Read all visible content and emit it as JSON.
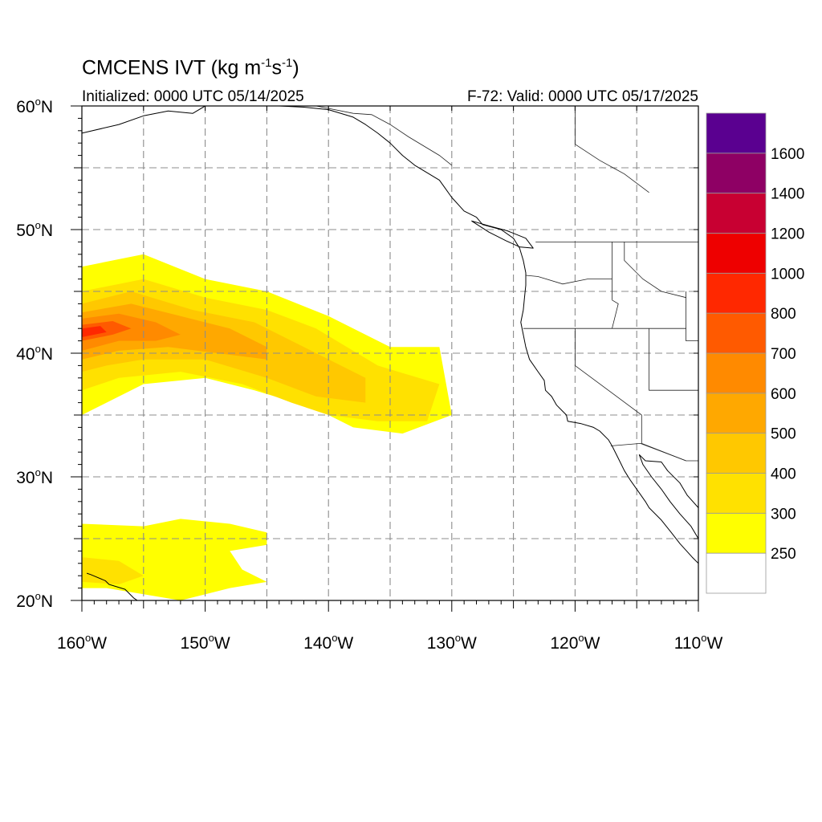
{
  "title": {
    "prefix": "CMCENS IVT (kg m",
    "exp1": "-1",
    "mid": "s",
    "exp2": "-1",
    "suffix": ")"
  },
  "subtitle_left": "Initialized: 0000 UTC 05/14/2025",
  "subtitle_right": "F-72: Valid: 0000 UTC 05/17/2025",
  "map": {
    "lon_range": [
      -160,
      -110
    ],
    "lat_range": [
      20,
      60
    ],
    "lon_ticks": [
      {
        "value": -160,
        "deg": "160",
        "hemi": "W"
      },
      {
        "value": -150,
        "deg": "150",
        "hemi": "W"
      },
      {
        "value": -140,
        "deg": "140",
        "hemi": "W"
      },
      {
        "value": -130,
        "deg": "130",
        "hemi": "W"
      },
      {
        "value": -120,
        "deg": "120",
        "hemi": "W"
      },
      {
        "value": -110,
        "deg": "110",
        "hemi": "W"
      }
    ],
    "lat_ticks": [
      {
        "value": 60,
        "deg": "60",
        "hemi": "N"
      },
      {
        "value": 50,
        "deg": "50",
        "hemi": "N"
      },
      {
        "value": 40,
        "deg": "40",
        "hemi": "N"
      },
      {
        "value": 30,
        "deg": "30",
        "hemi": "N"
      },
      {
        "value": 20,
        "deg": "20",
        "hemi": "N"
      }
    ],
    "gridlines": "dashed every 5 degrees",
    "degree_symbol": "o"
  },
  "colorbar": {
    "levels": [
      "250",
      "300",
      "400",
      "500",
      "600",
      "700",
      "800",
      "1000",
      "1200",
      "1400",
      "1600"
    ],
    "colors": [
      "#ffffff",
      "#ffff00",
      "#ffe100",
      "#ffc800",
      "#ffa800",
      "#ff8a00",
      "#ff5a00",
      "#ff2800",
      "#ee0000",
      "#c80032",
      "#8e0064",
      "#5a0090"
    ]
  },
  "ivt_fields": [
    {
      "name": "main-river",
      "level": 0,
      "ring": [
        [
          -160,
          47
        ],
        [
          -155,
          48
        ],
        [
          -150,
          46
        ],
        [
          -145,
          45
        ],
        [
          -140,
          43
        ],
        [
          -135,
          40.5
        ],
        [
          -131,
          40.5
        ],
        [
          -130,
          35
        ],
        [
          -134,
          33.5
        ],
        [
          -138,
          34
        ],
        [
          -141,
          35.5
        ],
        [
          -146,
          37
        ],
        [
          -150,
          38
        ],
        [
          -155,
          37.5
        ],
        [
          -158,
          36
        ],
        [
          -160,
          35
        ]
      ]
    },
    {
      "name": "main-river",
      "level": 1,
      "ring": [
        [
          -160,
          45
        ],
        [
          -155,
          46
        ],
        [
          -150,
          44.5
        ],
        [
          -145,
          43.5
        ],
        [
          -141,
          42
        ],
        [
          -136,
          39
        ],
        [
          -131,
          37.5
        ],
        [
          -132,
          34.5
        ],
        [
          -136,
          34.5
        ],
        [
          -140,
          35
        ],
        [
          -143,
          36
        ],
        [
          -147,
          37.5
        ],
        [
          -152,
          38.5
        ],
        [
          -157,
          38
        ],
        [
          -160,
          37
        ]
      ]
    },
    {
      "name": "main-river",
      "level": 2,
      "ring": [
        [
          -160,
          44
        ],
        [
          -156,
          45
        ],
        [
          -151,
          43.5
        ],
        [
          -146,
          42.5
        ],
        [
          -142,
          40.5
        ],
        [
          -137,
          38
        ],
        [
          -137,
          36
        ],
        [
          -141,
          36.5
        ],
        [
          -145,
          38
        ],
        [
          -150,
          39.5
        ],
        [
          -155,
          39.5
        ],
        [
          -158,
          39
        ],
        [
          -160,
          38.5
        ]
      ]
    },
    {
      "name": "main-river",
      "level": 3,
      "ring": [
        [
          -160,
          43.3
        ],
        [
          -156,
          44
        ],
        [
          -152,
          43
        ],
        [
          -148,
          42
        ],
        [
          -145,
          40.5
        ],
        [
          -145,
          39.5
        ],
        [
          -149,
          40
        ],
        [
          -153,
          40.5
        ],
        [
          -157,
          40.2
        ],
        [
          -160,
          39.5
        ]
      ]
    },
    {
      "name": "main-river",
      "level": 4,
      "ring": [
        [
          -160,
          42.8
        ],
        [
          -157,
          43.2
        ],
        [
          -154,
          42.5
        ],
        [
          -152,
          41.5
        ],
        [
          -154,
          41
        ],
        [
          -157,
          41
        ],
        [
          -160,
          40.2
        ]
      ]
    },
    {
      "name": "main-river",
      "level": 5,
      "ring": [
        [
          -160,
          42.3
        ],
        [
          -157.5,
          42.6
        ],
        [
          -156,
          42
        ],
        [
          -157.5,
          41.5
        ],
        [
          -160,
          41
        ]
      ]
    },
    {
      "name": "main-river",
      "level": 6,
      "ring": [
        [
          -160,
          42
        ],
        [
          -158.5,
          42.2
        ],
        [
          -158,
          41.7
        ],
        [
          -160,
          41.3
        ]
      ]
    },
    {
      "name": "subtropical-moisture",
      "level": 0,
      "ring": [
        [
          -160,
          26.2
        ],
        [
          -155,
          26
        ],
        [
          -152,
          26.6
        ],
        [
          -148,
          26.2
        ],
        [
          -145,
          25.5
        ],
        [
          -145,
          24.5
        ],
        [
          -148,
          24
        ],
        [
          -147,
          22.5
        ],
        [
          -145,
          21.5
        ],
        [
          -148,
          21
        ],
        [
          -152,
          20
        ],
        [
          -155,
          20.5
        ],
        [
          -158,
          21
        ],
        [
          -160,
          21
        ]
      ]
    },
    {
      "name": "subtropical-moisture",
      "level": 1,
      "ring": [
        [
          -160,
          23.5
        ],
        [
          -157,
          23.2
        ],
        [
          -155,
          22
        ],
        [
          -157,
          21.3
        ],
        [
          -160,
          21.5
        ]
      ]
    }
  ],
  "coastlines": [
    {
      "name": "alaska-coast",
      "points": [
        [
          -160,
          57.8
        ],
        [
          -157,
          58.5
        ],
        [
          -155,
          59.2
        ],
        [
          -153,
          59.6
        ],
        [
          -151,
          59.4
        ],
        [
          -150,
          60
        ],
        [
          -148,
          60
        ],
        [
          -146,
          60.2
        ],
        [
          -144,
          60
        ],
        [
          -142,
          59.9
        ],
        [
          -140,
          59.7
        ],
        [
          -138,
          59.1
        ],
        [
          -137,
          58.5
        ],
        [
          -136,
          57.8
        ],
        [
          -135,
          57
        ],
        [
          -134,
          56
        ],
        [
          -133,
          55.2
        ],
        [
          -132,
          54.6
        ],
        [
          -131,
          54
        ],
        [
          -130.5,
          53.3
        ],
        [
          -130,
          52.6
        ],
        [
          -129,
          51.5
        ],
        [
          -128,
          51
        ],
        [
          -127.5,
          50.4
        ],
        [
          -126,
          50
        ],
        [
          -125,
          49.3
        ],
        [
          -124.5,
          48.5
        ],
        [
          -124.2,
          47.5
        ],
        [
          -124,
          46.5
        ],
        [
          -124,
          45.5
        ],
        [
          -124.1,
          44.5
        ],
        [
          -124.2,
          43.5
        ],
        [
          -124.4,
          42.5
        ],
        [
          -124.2,
          41.5
        ],
        [
          -124,
          40.5
        ],
        [
          -123.7,
          39.5
        ],
        [
          -123,
          38.5
        ],
        [
          -122.5,
          37.8
        ],
        [
          -122.4,
          37
        ],
        [
          -121.9,
          36.5
        ],
        [
          -121.5,
          35.8
        ],
        [
          -120.7,
          35
        ],
        [
          -120.6,
          34.5
        ],
        [
          -119.5,
          34.3
        ],
        [
          -118.5,
          34
        ],
        [
          -118,
          33.7
        ],
        [
          -117.3,
          33
        ],
        [
          -117,
          32.5
        ],
        [
          -116.5,
          31.5
        ],
        [
          -116,
          30.5
        ],
        [
          -115.5,
          29.7
        ],
        [
          -115,
          29
        ],
        [
          -114.3,
          28
        ],
        [
          -114,
          27.5
        ],
        [
          -113,
          26.5
        ],
        [
          -112.2,
          25.5
        ],
        [
          -111.5,
          24.6
        ],
        [
          -110.5,
          23.5
        ],
        [
          -110,
          23
        ]
      ]
    },
    {
      "name": "gulf-of-california-coast",
      "points": [
        [
          -114.8,
          31.8
        ],
        [
          -114.5,
          31
        ],
        [
          -113.8,
          30
        ],
        [
          -113,
          29
        ],
        [
          -112.3,
          28
        ],
        [
          -111.5,
          27
        ],
        [
          -110.6,
          26
        ],
        [
          -110,
          25
        ]
      ]
    },
    {
      "name": "mexico-mainland-coast",
      "points": [
        [
          -114.8,
          31.8
        ],
        [
          -114.3,
          31.3
        ],
        [
          -113,
          31.2
        ],
        [
          -112.5,
          30.5
        ],
        [
          -111.5,
          29.5
        ],
        [
          -110.9,
          28.5
        ],
        [
          -110,
          27.5
        ],
        [
          -110,
          27
        ]
      ]
    },
    {
      "name": "hawaii-islands",
      "points": [
        [
          -159.6,
          22.2
        ],
        [
          -159.3,
          22.1
        ],
        [
          -158.1,
          21.6
        ],
        [
          -157.8,
          21.3
        ],
        [
          -156.5,
          20.9
        ],
        [
          -155.8,
          20.2
        ],
        [
          -155.5,
          20
        ]
      ]
    },
    {
      "name": "vancouver-island",
      "points": [
        [
          -128.4,
          50.7
        ],
        [
          -127,
          50.3
        ],
        [
          -125.5,
          49.9
        ],
        [
          -124,
          49.3
        ],
        [
          -123.4,
          48.5
        ],
        [
          -124.5,
          48.6
        ],
        [
          -125.6,
          49.1
        ],
        [
          -127,
          49.8
        ],
        [
          -128.4,
          50.7
        ]
      ]
    }
  ],
  "boundaries": [
    {
      "name": "us-canada-border",
      "points": [
        [
          -123.2,
          49
        ],
        [
          -110,
          49
        ]
      ]
    },
    {
      "name": "alaska-canada-border",
      "points": [
        [
          -141,
          60
        ],
        [
          -138,
          59.4
        ],
        [
          -136.5,
          59.3
        ],
        [
          -135,
          58.5
        ],
        [
          -133.5,
          57.5
        ],
        [
          -131,
          56
        ],
        [
          -130,
          55.2
        ]
      ]
    },
    {
      "name": "canada-coast-continuation",
      "points": [
        [
          -120,
          60
        ],
        [
          -120,
          56.9
        ],
        [
          -118,
          55.6
        ],
        [
          -116,
          54.5
        ],
        [
          -114,
          53
        ]
      ]
    },
    {
      "name": "wa-or-border",
      "points": [
        [
          -124,
          46.3
        ],
        [
          -123,
          46.2
        ],
        [
          -121,
          45.6
        ],
        [
          -119,
          46
        ],
        [
          -117,
          46
        ]
      ]
    },
    {
      "name": "id-wa-border",
      "points": [
        [
          -117,
          49
        ],
        [
          -117,
          44.3
        ]
      ]
    },
    {
      "name": "id-east-border",
      "points": [
        [
          -116,
          49
        ],
        [
          -116,
          47.5
        ],
        [
          -114.5,
          46
        ],
        [
          -113,
          45
        ],
        [
          -111,
          44.5
        ]
      ]
    },
    {
      "name": "or-ca-border",
      "points": [
        [
          -124.2,
          42
        ],
        [
          -111,
          42
        ]
      ]
    },
    {
      "name": "or-id-border",
      "points": [
        [
          -117,
          44.3
        ],
        [
          -116.5,
          44
        ],
        [
          -117,
          42
        ]
      ]
    },
    {
      "name": "ca-nv-border",
      "points": [
        [
          -120,
          42
        ],
        [
          -120,
          39
        ],
        [
          -114.6,
          35
        ]
      ]
    },
    {
      "name": "nv-ut-border",
      "points": [
        [
          -114,
          42
        ],
        [
          -114,
          37
        ],
        [
          -110,
          37
        ]
      ]
    },
    {
      "name": "az-border",
      "points": [
        [
          -114.6,
          35
        ],
        [
          -114.6,
          32.7
        ],
        [
          -111,
          31.3
        ]
      ]
    },
    {
      "name": "us-mexico-border",
      "points": [
        [
          -117.1,
          32.5
        ],
        [
          -114.7,
          32.7
        ],
        [
          -111,
          31.3
        ],
        [
          -110,
          31.3
        ]
      ]
    },
    {
      "name": "wy-border",
      "points": [
        [
          -111,
          45
        ],
        [
          -111,
          41
        ],
        [
          -110,
          41
        ]
      ]
    }
  ]
}
